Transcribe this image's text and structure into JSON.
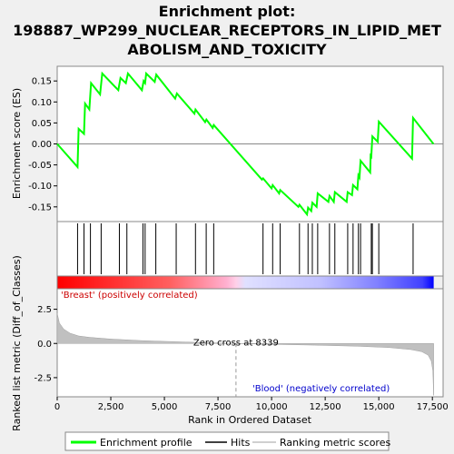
{
  "chart_data": {
    "type": "line",
    "title_lines": [
      "Enrichment plot:",
      "198887_WP299_NUCLEAR_RECEPTORS_IN_LIPID_MET",
      "ABOLISM_AND_TOXICITY"
    ],
    "es_panel": {
      "ylabel": "Enrichment score (ES)",
      "ylim": [
        -0.185,
        0.185
      ],
      "yticks": [
        -0.15,
        -0.1,
        -0.05,
        0.0,
        0.05,
        0.1,
        0.15
      ],
      "ytick_labels": [
        "-0.15",
        "-0.10",
        "-0.05",
        "0.00",
        "0.05",
        "0.10",
        "0.15"
      ],
      "xlim": [
        0,
        18000
      ],
      "line_color": "#00ff00",
      "points": [
        [
          0,
          0.0
        ],
        [
          950,
          -0.055
        ],
        [
          1000,
          0.036
        ],
        [
          1250,
          0.024
        ],
        [
          1300,
          0.096
        ],
        [
          1500,
          0.082
        ],
        [
          1580,
          0.145
        ],
        [
          2000,
          0.118
        ],
        [
          2100,
          0.168
        ],
        [
          2850,
          0.128
        ],
        [
          2950,
          0.157
        ],
        [
          3200,
          0.145
        ],
        [
          3300,
          0.168
        ],
        [
          3950,
          0.128
        ],
        [
          4030,
          0.15
        ],
        [
          4100,
          0.145
        ],
        [
          4150,
          0.168
        ],
        [
          4550,
          0.148
        ],
        [
          4620,
          0.165
        ],
        [
          5500,
          0.108
        ],
        [
          5580,
          0.12
        ],
        [
          6400,
          0.072
        ],
        [
          6450,
          0.082
        ],
        [
          6900,
          0.052
        ],
        [
          6960,
          0.058
        ],
        [
          7250,
          0.038
        ],
        [
          7300,
          0.045
        ],
        [
          9550,
          -0.085
        ],
        [
          9600,
          -0.082
        ],
        [
          10000,
          -0.106
        ],
        [
          10050,
          -0.098
        ],
        [
          10350,
          -0.118
        ],
        [
          10400,
          -0.11
        ],
        [
          11250,
          -0.15
        ],
        [
          11300,
          -0.145
        ],
        [
          11650,
          -0.168
        ],
        [
          11700,
          -0.152
        ],
        [
          11850,
          -0.16
        ],
        [
          11900,
          -0.14
        ],
        [
          12100,
          -0.15
        ],
        [
          12150,
          -0.118
        ],
        [
          12650,
          -0.138
        ],
        [
          12700,
          -0.124
        ],
        [
          12900,
          -0.138
        ],
        [
          12950,
          -0.115
        ],
        [
          13500,
          -0.138
        ],
        [
          13550,
          -0.115
        ],
        [
          13750,
          -0.122
        ],
        [
          13800,
          -0.098
        ],
        [
          14000,
          -0.108
        ],
        [
          14050,
          -0.075
        ],
        [
          14100,
          -0.08
        ],
        [
          14150,
          -0.04
        ],
        [
          14600,
          -0.068
        ],
        [
          14620,
          -0.028
        ],
        [
          14650,
          -0.03
        ],
        [
          14700,
          0.018
        ],
        [
          14950,
          0.005
        ],
        [
          15000,
          0.053
        ],
        [
          16550,
          -0.035
        ],
        [
          16600,
          0.062
        ],
        [
          17550,
          0.0
        ]
      ]
    },
    "hits_panel": {
      "hits": [
        950,
        1250,
        1550,
        2050,
        2900,
        3250,
        4000,
        4100,
        4600,
        5550,
        6450,
        6950,
        7300,
        9600,
        10050,
        10400,
        11300,
        11700,
        11900,
        12150,
        12700,
        12950,
        13550,
        13800,
        14050,
        14150,
        14650,
        14700,
        15000,
        16600
      ],
      "gradient_stops": [
        {
          "pos": 0.0,
          "color": "#ff0000"
        },
        {
          "pos": 0.3,
          "color": "#ff6060"
        },
        {
          "pos": 0.45,
          "color": "#ffb0d0"
        },
        {
          "pos": 0.475,
          "color": "#ffd0e8"
        },
        {
          "pos": 0.5,
          "color": "#e0e0ff"
        },
        {
          "pos": 0.7,
          "color": "#c0c0ff"
        },
        {
          "pos": 0.85,
          "color": "#8080ff"
        },
        {
          "pos": 0.97,
          "color": "#4040ff"
        },
        {
          "pos": 1.0,
          "color": "#0000ff"
        }
      ]
    },
    "metric_panel": {
      "ylabel": "Ranked list metric (Diff_of_Classes)",
      "xlabel": "Rank in Ordered Dataset",
      "ylim": [
        -3.9,
        4.0
      ],
      "yticks": [
        -2.5,
        0.0,
        2.5
      ],
      "ytick_labels": [
        "-2.5",
        "0.0",
        "2.5"
      ],
      "xticks": [
        0,
        2500,
        5000,
        7500,
        10000,
        12500,
        15000,
        17500
      ],
      "xtick_labels": [
        "0",
        "2,500",
        "5,000",
        "7,500",
        "10,000",
        "12,500",
        "15,000",
        "17,500"
      ],
      "zero_cross": 8339,
      "zero_cross_label": "Zero cross at 8339",
      "positive_label": "'Breast' (positively correlated)",
      "negative_label": "'Blood' (negatively correlated)",
      "curve": [
        [
          0,
          2.2
        ],
        [
          100,
          1.5
        ],
        [
          300,
          1.05
        ],
        [
          600,
          0.75
        ],
        [
          1000,
          0.55
        ],
        [
          1500,
          0.45
        ],
        [
          2500,
          0.32
        ],
        [
          4000,
          0.2
        ],
        [
          6000,
          0.1
        ],
        [
          8339,
          0.0
        ],
        [
          10000,
          -0.06
        ],
        [
          12000,
          -0.12
        ],
        [
          14000,
          -0.2
        ],
        [
          15500,
          -0.3
        ],
        [
          16500,
          -0.45
        ],
        [
          17000,
          -0.6
        ],
        [
          17300,
          -0.85
        ],
        [
          17450,
          -1.3
        ],
        [
          17520,
          -2.0
        ],
        [
          17560,
          -3.8
        ]
      ]
    },
    "legend": [
      {
        "label": "Enrichment profile",
        "color": "#00ff00"
      },
      {
        "label": "Hits",
        "color": "#000000"
      },
      {
        "label": "Ranking metric scores",
        "color": "#c0c0c0"
      }
    ]
  }
}
